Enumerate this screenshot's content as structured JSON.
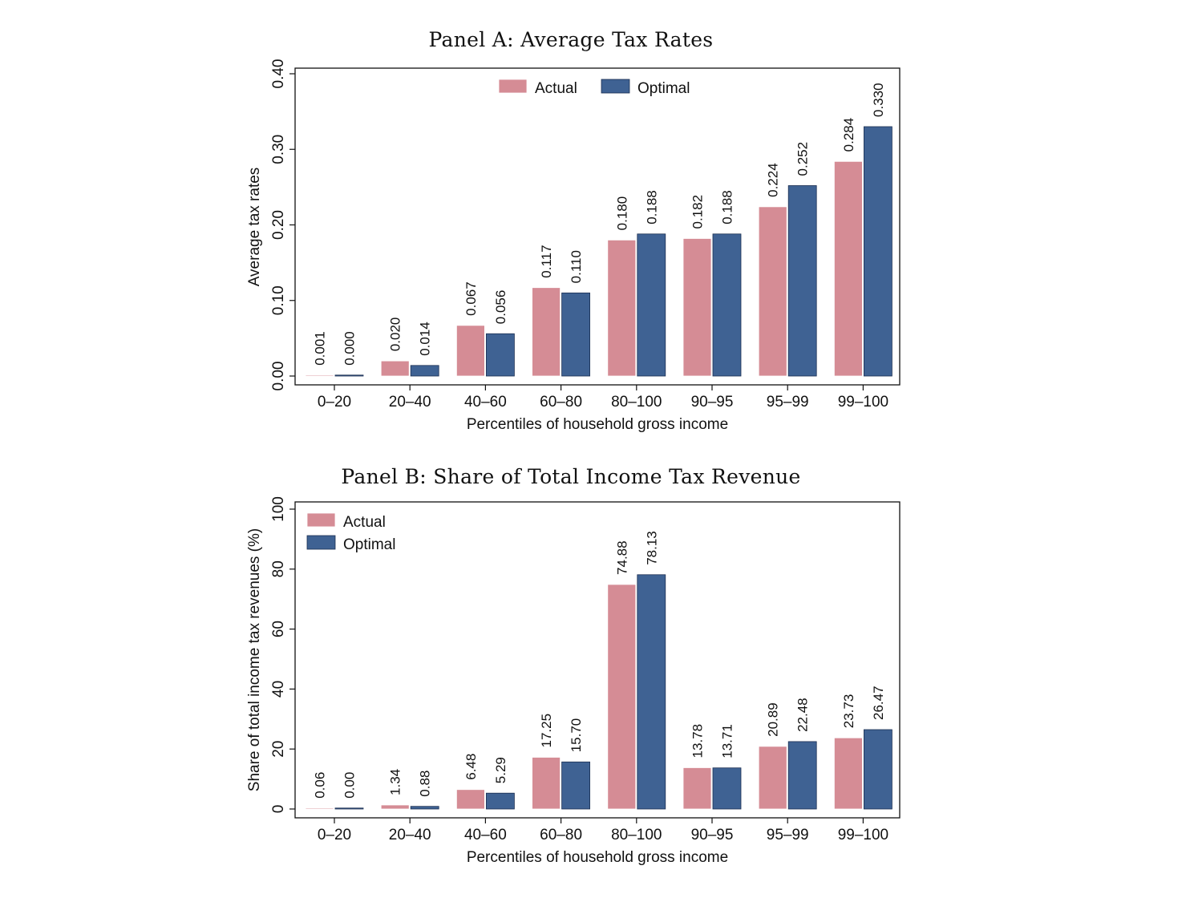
{
  "colors": {
    "actual": "#d58c95",
    "optimal": "#3f6293"
  },
  "chart_data": [
    {
      "type": "bar",
      "title": "Panel A: Average Tax Rates",
      "xlabel": "Percentiles of household gross income",
      "ylabel": "Average tax rates",
      "categories": [
        "0–20",
        "20–40",
        "40–60",
        "60–80",
        "80–100",
        "90–95",
        "95–99",
        "99–100"
      ],
      "ylim": [
        0,
        0.4
      ],
      "yticks": [
        0.0,
        0.1,
        0.2,
        0.3,
        0.4
      ],
      "ytick_labels": [
        "0.00",
        "0.10",
        "0.20",
        "0.30",
        "0.40"
      ],
      "legend": "top-center-horizontal",
      "grid": false,
      "series": [
        {
          "name": "Actual",
          "values": [
            0.001,
            0.02,
            0.067,
            0.117,
            0.18,
            0.182,
            0.224,
            0.284
          ],
          "labels": [
            "0.001",
            "0.020",
            "0.067",
            "0.117",
            "0.180",
            "0.182",
            "0.224",
            "0.284"
          ]
        },
        {
          "name": "Optimal",
          "values": [
            0.0,
            0.014,
            0.056,
            0.11,
            0.188,
            0.188,
            0.252,
            0.33
          ],
          "labels": [
            "0.000",
            "0.014",
            "0.056",
            "0.110",
            "0.188",
            "0.188",
            "0.252",
            "0.330"
          ]
        }
      ]
    },
    {
      "type": "bar",
      "title": "Panel B: Share of Total Income Tax Revenue",
      "xlabel": "Percentiles of household gross income",
      "ylabel": "Share of total income tax revenues (%)",
      "categories": [
        "0–20",
        "20–40",
        "40–60",
        "60–80",
        "80–100",
        "90–95",
        "95–99",
        "99–100"
      ],
      "ylim": [
        0,
        100
      ],
      "yticks": [
        0,
        20,
        40,
        60,
        80,
        100
      ],
      "ytick_labels": [
        "0",
        "20",
        "40",
        "60",
        "80",
        "100"
      ],
      "legend": "top-left-vertical",
      "grid": false,
      "series": [
        {
          "name": "Actual",
          "values": [
            0.06,
            1.34,
            6.48,
            17.25,
            74.88,
            13.78,
            20.89,
            23.73
          ],
          "labels": [
            "0.06",
            "1.34",
            "6.48",
            "17.25",
            "74.88",
            "13.78",
            "20.89",
            "23.73"
          ]
        },
        {
          "name": "Optimal",
          "values": [
            0.0,
            0.88,
            5.29,
            15.7,
            78.13,
            13.71,
            22.48,
            26.47
          ],
          "labels": [
            "0.00",
            "0.88",
            "5.29",
            "15.70",
            "78.13",
            "13.71",
            "22.48",
            "26.47"
          ]
        }
      ]
    }
  ]
}
